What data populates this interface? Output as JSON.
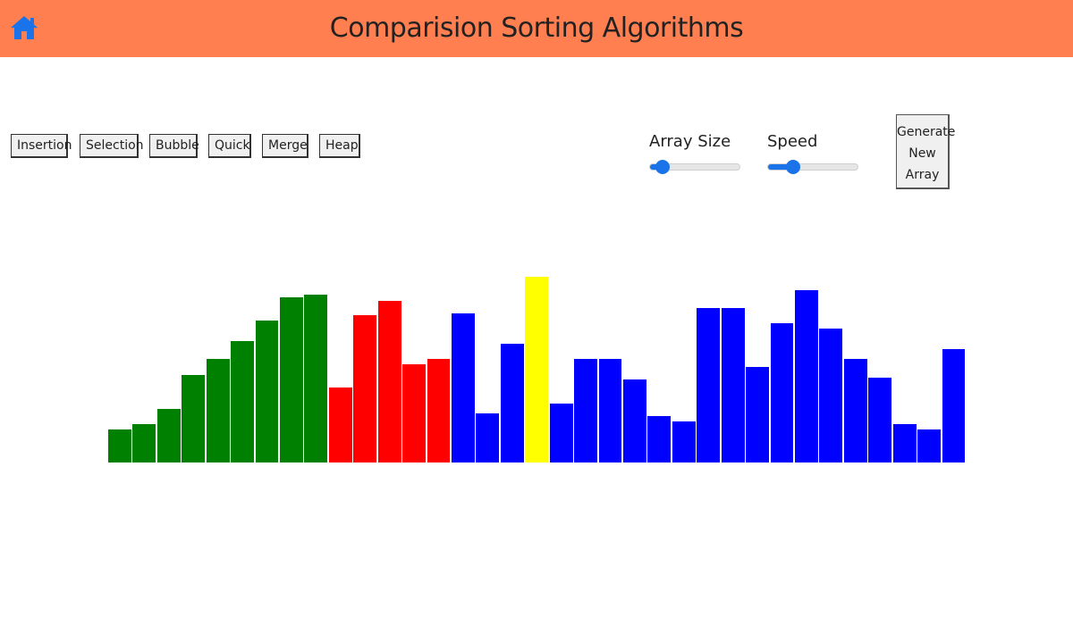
{
  "header": {
    "title": "Comparision Sorting Algorithms",
    "home_icon": "home-icon",
    "bg_color": "#ff7f50",
    "home_color": "#1a73e8"
  },
  "algorithms": [
    "Insertion",
    "Selection",
    "Bubble",
    "Quick",
    "Merge",
    "Heap"
  ],
  "controls": {
    "array_size_label": "Array Size",
    "array_size_level": 0.15,
    "speed_label": "Speed",
    "speed_level": 0.28,
    "generate_line1": "Generate",
    "generate_line2": "New",
    "generate_line3": "Array"
  },
  "colors": {
    "sorted": "#008000",
    "active": "#ff0000",
    "pivot": "#ffff00",
    "unsorted": "#0000ff"
  },
  "chart_data": {
    "type": "bar",
    "values": [
      37,
      43,
      60,
      98,
      116,
      136,
      159,
      185,
      188,
      84,
      165,
      181,
      110,
      116,
      167,
      55,
      133,
      208,
      66,
      116,
      116,
      93,
      52,
      46,
      173,
      173,
      107,
      156,
      193,
      150,
      116,
      95,
      43,
      37,
      127
    ],
    "states": [
      "sorted",
      "sorted",
      "sorted",
      "sorted",
      "sorted",
      "sorted",
      "sorted",
      "sorted",
      "sorted",
      "active",
      "active",
      "active",
      "active",
      "active",
      "unsorted",
      "unsorted",
      "unsorted",
      "pivot",
      "unsorted",
      "unsorted",
      "unsorted",
      "unsorted",
      "unsorted",
      "unsorted",
      "unsorted",
      "unsorted",
      "unsorted",
      "unsorted",
      "unsorted",
      "unsorted",
      "unsorted",
      "unsorted",
      "unsorted",
      "unsorted",
      "unsorted"
    ],
    "ylim": [
      0,
      218
    ]
  }
}
